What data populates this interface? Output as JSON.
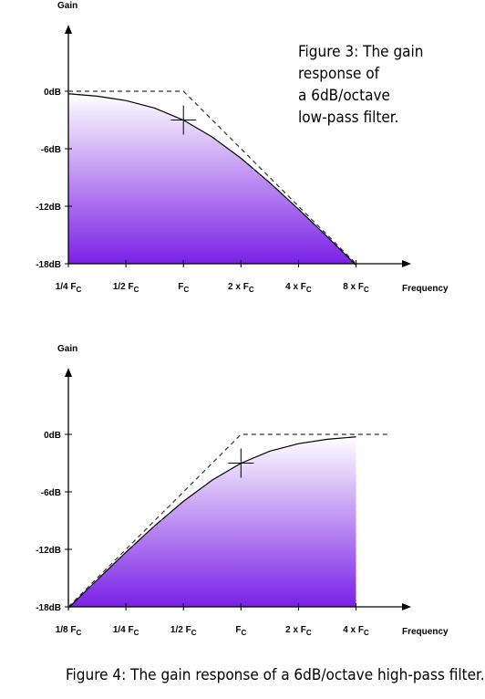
{
  "chart_data": [
    {
      "type": "line",
      "caption": [
        "Figure 3: The gain",
        "response of",
        "a 6dB/octave",
        "low-pass filter."
      ],
      "y_label": "Gain",
      "x_label": "Frequency",
      "xlim": [
        -2,
        3.8
      ],
      "ylim": [
        -18,
        6
      ],
      "xticks": [
        {
          "value": -2,
          "label": "1/4 F",
          "subscript": "C"
        },
        {
          "value": -1,
          "label": "1/2 F",
          "subscript": "C"
        },
        {
          "value": 0,
          "label": "F",
          "subscript": "C"
        },
        {
          "value": 1,
          "label": "2 x F",
          "subscript": "C"
        },
        {
          "value": 2,
          "label": "4 x F",
          "subscript": "C"
        },
        {
          "value": 3,
          "label": "8 x F",
          "subscript": "C"
        }
      ],
      "yticks": [
        {
          "value": 0,
          "label": "0dB"
        },
        {
          "value": -6,
          "label": "-6dB"
        },
        {
          "value": -12,
          "label": "-12dB"
        },
        {
          "value": -18,
          "label": "-18dB"
        }
      ],
      "fill_colors": [
        "#7a1fe6",
        "#ffffff"
      ],
      "series": [
        {
          "color": "#000000",
          "style": "solid",
          "fill": true,
          "x": [
            -2,
            -1.5,
            -1,
            -0.5,
            0,
            0.5,
            1,
            1.5,
            2,
            2.5,
            3
          ],
          "values": [
            -0.26,
            -0.51,
            -0.97,
            -1.76,
            -3.01,
            -4.77,
            -6.99,
            -9.54,
            -12.3,
            -15.19,
            -18.13
          ]
        },
        {
          "color": "#333333",
          "style": "dashed",
          "fill": false,
          "x": [
            -2,
            0,
            3
          ],
          "values": [
            0,
            0,
            -18
          ]
        }
      ],
      "marker": {
        "x": 0,
        "y": -3
      }
    },
    {
      "type": "line",
      "caption": [
        "Figure 4: The gain response of a 6dB/octave high-pass filter."
      ],
      "y_label": "Gain",
      "x_label": "Frequency",
      "xlim": [
        -3,
        2.8
      ],
      "ylim": [
        -18,
        6
      ],
      "xticks": [
        {
          "value": -3,
          "label": "1/8 F",
          "subscript": "C"
        },
        {
          "value": -2,
          "label": "1/4 F",
          "subscript": "C"
        },
        {
          "value": -1,
          "label": "1/2 F",
          "subscript": "C"
        },
        {
          "value": 0,
          "label": "F",
          "subscript": "C"
        },
        {
          "value": 1,
          "label": "2 x F",
          "subscript": "C"
        },
        {
          "value": 2,
          "label": "4 x F",
          "subscript": "C"
        }
      ],
      "yticks": [
        {
          "value": 0,
          "label": "0dB"
        },
        {
          "value": -6,
          "label": "-6dB"
        },
        {
          "value": -12,
          "label": "-12dB"
        },
        {
          "value": -18,
          "label": "-18dB"
        }
      ],
      "fill_colors": [
        "#7a1fe6",
        "#ffffff"
      ],
      "series": [
        {
          "color": "#000000",
          "style": "solid",
          "fill": true,
          "x": [
            -3,
            -2.5,
            -2,
            -1.5,
            -1,
            -0.5,
            0,
            0.5,
            1,
            1.5,
            2
          ],
          "values": [
            -18.13,
            -15.19,
            -12.3,
            -9.54,
            -6.99,
            -4.77,
            -3.01,
            -1.76,
            -0.97,
            -0.51,
            -0.26
          ]
        },
        {
          "color": "#333333",
          "style": "dashed",
          "fill": false,
          "x": [
            -3,
            0,
            2.6
          ],
          "values": [
            -18,
            0,
            0
          ]
        }
      ],
      "marker": {
        "x": 0,
        "y": -3
      }
    }
  ]
}
